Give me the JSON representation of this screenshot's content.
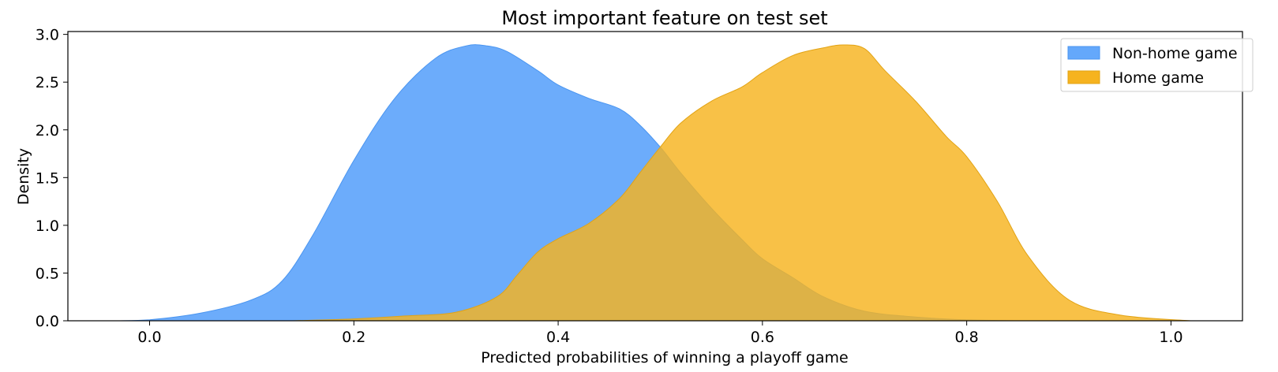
{
  "chart_data": {
    "type": "area",
    "title": "Most important feature on test set",
    "xlabel": "Predicted probabilities of winning a playoff game",
    "ylabel": "Density",
    "xlim": [
      -0.08,
      1.07
    ],
    "ylim": [
      0,
      3.03
    ],
    "xticks": [
      0.0,
      0.2,
      0.4,
      0.6,
      0.8,
      1.0
    ],
    "xtick_labels": [
      "0.0",
      "0.2",
      "0.4",
      "0.6",
      "0.8",
      "1.0"
    ],
    "yticks": [
      0.0,
      0.5,
      1.0,
      1.5,
      2.0,
      2.5,
      3.0
    ],
    "ytick_labels": [
      "0.0",
      "0.5",
      "1.0",
      "1.5",
      "2.0",
      "2.5",
      "3.0"
    ],
    "grid": false,
    "legend_position": "top-right",
    "series": [
      {
        "name": "Non-home game",
        "color": "#64a8fb",
        "edge_color": "#4a95f0",
        "x": [
          -0.03,
          0.0,
          0.05,
          0.1,
          0.13,
          0.16,
          0.2,
          0.24,
          0.28,
          0.31,
          0.33,
          0.35,
          0.38,
          0.4,
          0.43,
          0.46,
          0.48,
          0.5,
          0.52,
          0.55,
          0.58,
          0.6,
          0.63,
          0.66,
          0.7,
          0.75,
          0.8,
          0.85
        ],
        "y": [
          0.0,
          0.01,
          0.08,
          0.22,
          0.42,
          0.9,
          1.68,
          2.33,
          2.75,
          2.88,
          2.88,
          2.82,
          2.62,
          2.47,
          2.33,
          2.22,
          2.05,
          1.82,
          1.55,
          1.18,
          0.85,
          0.65,
          0.45,
          0.25,
          0.1,
          0.04,
          0.01,
          0.0
        ]
      },
      {
        "name": "Home game",
        "color": "#f6b31f",
        "edge_color": "#e2a314",
        "x": [
          0.14,
          0.2,
          0.25,
          0.3,
          0.34,
          0.36,
          0.38,
          0.4,
          0.43,
          0.46,
          0.48,
          0.5,
          0.52,
          0.55,
          0.58,
          0.6,
          0.63,
          0.66,
          0.68,
          0.7,
          0.72,
          0.75,
          0.78,
          0.8,
          0.83,
          0.86,
          0.9,
          0.95,
          1.02
        ],
        "y": [
          0.0,
          0.02,
          0.05,
          0.09,
          0.25,
          0.48,
          0.72,
          0.86,
          1.02,
          1.28,
          1.55,
          1.82,
          2.07,
          2.3,
          2.45,
          2.6,
          2.78,
          2.86,
          2.89,
          2.85,
          2.62,
          2.3,
          1.93,
          1.72,
          1.25,
          0.68,
          0.22,
          0.06,
          0.0
        ]
      }
    ]
  }
}
